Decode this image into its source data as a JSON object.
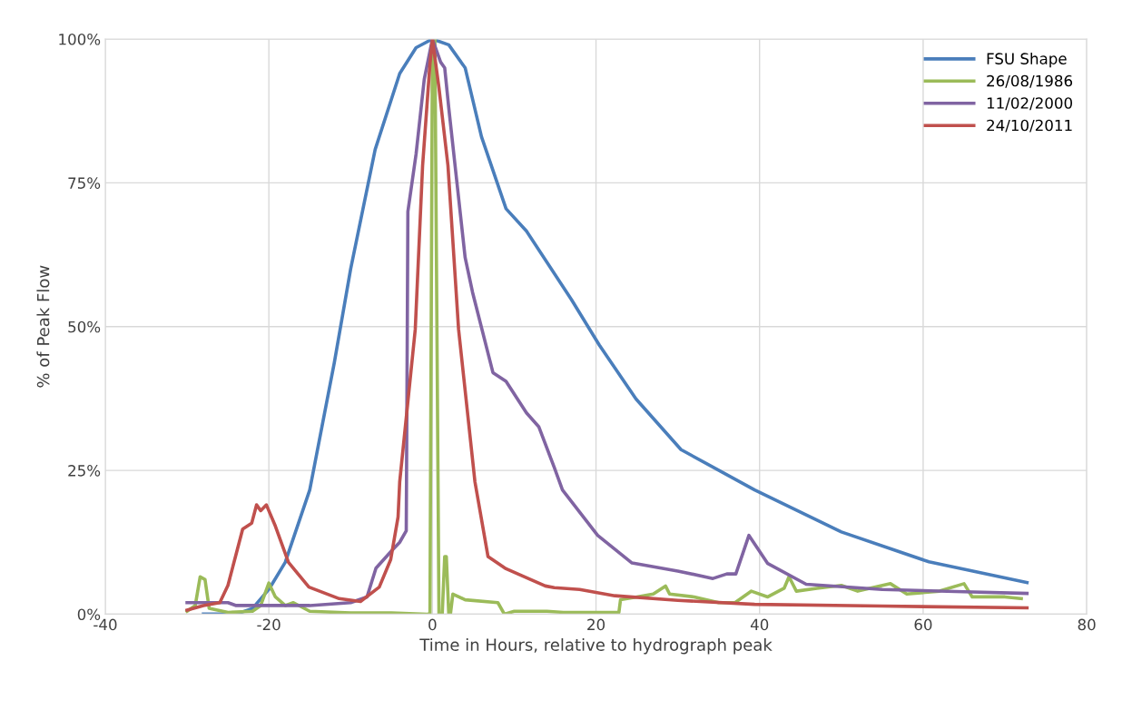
{
  "chart_data": {
    "type": "line",
    "xlabel": "Time in Hours, relative to hydrograph peak",
    "ylabel": "% of Peak Flow",
    "xlim": [
      -40,
      80
    ],
    "xticks": [
      -40,
      -20,
      0,
      20,
      40,
      60,
      80
    ],
    "ylim": [
      0,
      100
    ],
    "yticks": [
      {
        "value": 0,
        "label": "0%"
      },
      {
        "value": 25,
        "label": "25%"
      },
      {
        "value": 50,
        "label": "50%"
      },
      {
        "value": 75,
        "label": "75%"
      },
      {
        "value": 100,
        "label": "100%"
      }
    ],
    "grid": true,
    "legend": "top right",
    "marker": "none",
    "line_style": "solid",
    "series": [
      {
        "name": "FSU Shape",
        "color": "#4a7ebb",
        "x": [
          -28,
          -24,
          -22,
          -20,
          -18,
          -15,
          -12,
          -10,
          -7,
          -4,
          -2,
          0,
          2,
          4,
          6,
          9,
          11.5,
          17,
          20.4,
          24.9,
          30.4,
          39.4,
          50,
          60.7,
          72.7
        ],
        "values": [
          0,
          0,
          1,
          4.3,
          9,
          21.6,
          43.7,
          60,
          80.8,
          94,
          98.5,
          100,
          99,
          95,
          83,
          70.5,
          66.6,
          54.7,
          46.8,
          37.4,
          28.6,
          21.6,
          14.3,
          9.1,
          5.5
        ]
      },
      {
        "name": "26/08/1986",
        "color": "#9bbb59",
        "x": [
          -30,
          -29,
          -28.4,
          -27.8,
          -27.3,
          -25,
          -22,
          -21,
          -20,
          -19.2,
          -18,
          -17,
          -15,
          -10,
          -5,
          -0.6,
          -0.3,
          0,
          0.3,
          0.8,
          1.2,
          1.5,
          1.7,
          2,
          2.2,
          2.5,
          4,
          8,
          8.8,
          10,
          14,
          16,
          22.8,
          23,
          25,
          27,
          28.5,
          29,
          32,
          35,
          37,
          39,
          41,
          43,
          43.6,
          44.5,
          47,
          50,
          52,
          56,
          58,
          62,
          65,
          66,
          70,
          72
        ],
        "values": [
          0.5,
          1.5,
          6.5,
          6,
          1,
          0.3,
          0.5,
          1.5,
          5.4,
          3,
          1.5,
          2,
          0.5,
          0.2,
          0.2,
          0,
          0,
          100,
          100,
          0,
          0,
          10,
          10,
          0,
          0,
          3.5,
          2.5,
          2,
          0,
          0.5,
          0.5,
          0.3,
          0.3,
          2.5,
          3,
          3.5,
          4.9,
          3.5,
          3,
          2,
          2,
          4,
          3,
          4.5,
          6.5,
          4,
          4.5,
          5,
          4,
          5.3,
          3.5,
          4,
          5.3,
          3,
          3,
          2.7
        ]
      },
      {
        "name": "11/02/2000",
        "color": "#8064a2",
        "x": [
          -30,
          -25,
          -24,
          -15,
          -10,
          -8,
          -6.9,
          -5,
          -4,
          -3.2,
          -3,
          -2,
          -1,
          0,
          1,
          1.5,
          2,
          3,
          4,
          4.9,
          7.4,
          9,
          11.5,
          13,
          14.9,
          15.9,
          20.2,
          24.4,
          30,
          34.3,
          36,
          37.1,
          38.7,
          41,
          45.7,
          55,
          65,
          72.7
        ],
        "values": [
          2,
          2,
          1.5,
          1.5,
          2,
          3,
          8,
          11,
          12.5,
          14.5,
          70,
          80,
          93,
          100,
          96,
          95,
          88,
          75,
          62,
          56,
          42,
          40.5,
          35,
          32.6,
          25.5,
          21.6,
          13.7,
          8.9,
          7.5,
          6.2,
          7,
          7,
          13.7,
          8.8,
          5.2,
          4.3,
          3.9,
          3.6
        ]
      },
      {
        "name": "24/10/2011",
        "color": "#c0504d",
        "x": [
          -30,
          -28,
          -26,
          -25,
          -23.2,
          -22.1,
          -21.5,
          -21,
          -20.3,
          -19.2,
          -17.6,
          -15.1,
          -11.4,
          -8.8,
          -6.5,
          -5.1,
          -4.2,
          -4,
          -2.1,
          -1.2,
          -0.3,
          0,
          0.8,
          1.9,
          3.2,
          5.2,
          6.8,
          9,
          11.9,
          13.8,
          14.9,
          18,
          22.3,
          30,
          39.4,
          55,
          72.7
        ],
        "values": [
          0.7,
          1.5,
          2,
          5,
          14.8,
          15.8,
          19,
          18,
          19,
          15.3,
          9,
          4.7,
          2.7,
          2.2,
          4.7,
          9.5,
          16.9,
          23,
          49.5,
          78,
          95.7,
          100,
          91.5,
          78,
          49.5,
          23,
          10,
          7.9,
          6.1,
          4.9,
          4.6,
          4.3,
          3.2,
          2.4,
          1.7,
          1.4,
          1.1
        ]
      }
    ]
  }
}
